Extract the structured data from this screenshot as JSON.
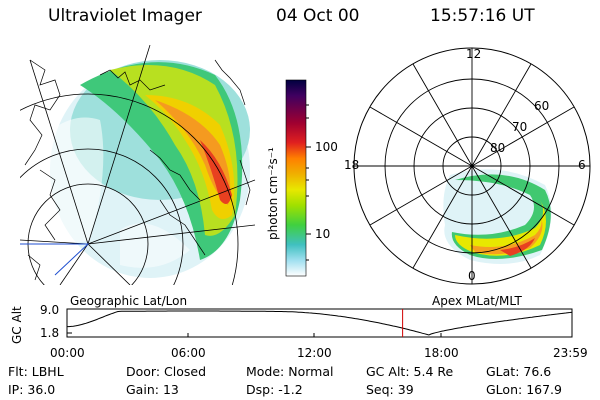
{
  "header": {
    "instrument": "Ultraviolet Imager",
    "date": "04 Oct 00",
    "time": "15:57:16 UT"
  },
  "colorbar": {
    "label": "photon cm⁻²s⁻¹",
    "ticks": [
      "100",
      "10"
    ],
    "colors": [
      "#000040",
      "#400060",
      "#a00030",
      "#e02020",
      "#ff8000",
      "#f0b000",
      "#e8e800",
      "#a0e000",
      "#40d040",
      "#40c0c0",
      "#a0e0f0",
      "#ffffff"
    ]
  },
  "polar_plot": {
    "mlt_labels": {
      "top": "12",
      "left": "18",
      "right": "6",
      "bottom": "0"
    },
    "lat_labels": [
      "60",
      "70",
      "80"
    ]
  },
  "projection_labels": {
    "left": "Geographic Lat/Lon",
    "right": "Apex MLat/MLT"
  },
  "altitude_panel": {
    "ylabel": "GC Alt",
    "y_ticks": [
      "9.0",
      "1.8"
    ],
    "x_ticks": [
      "00:00",
      "06:00",
      "12:00",
      "18:00",
      "23:59"
    ],
    "current_time_marker_hours": 15.95
  },
  "info": {
    "row1": [
      {
        "label": "Flt:",
        "value": "LBHL"
      },
      {
        "label": "Door:",
        "value": "Closed"
      },
      {
        "label": "Mode:",
        "value": "Normal"
      },
      {
        "label": "GC Alt:",
        "value": "5.4 Re"
      },
      {
        "label": "GLat:",
        "value": "76.6"
      }
    ],
    "row2": [
      {
        "label": "IP:",
        "value": "36.0"
      },
      {
        "label": "Gain:",
        "value": "13"
      },
      {
        "label": "Dsp:",
        "value": "-1.2"
      },
      {
        "label": "Seq:",
        "value": "39"
      },
      {
        "label": "GLon:",
        "value": "167.9"
      }
    ]
  }
}
